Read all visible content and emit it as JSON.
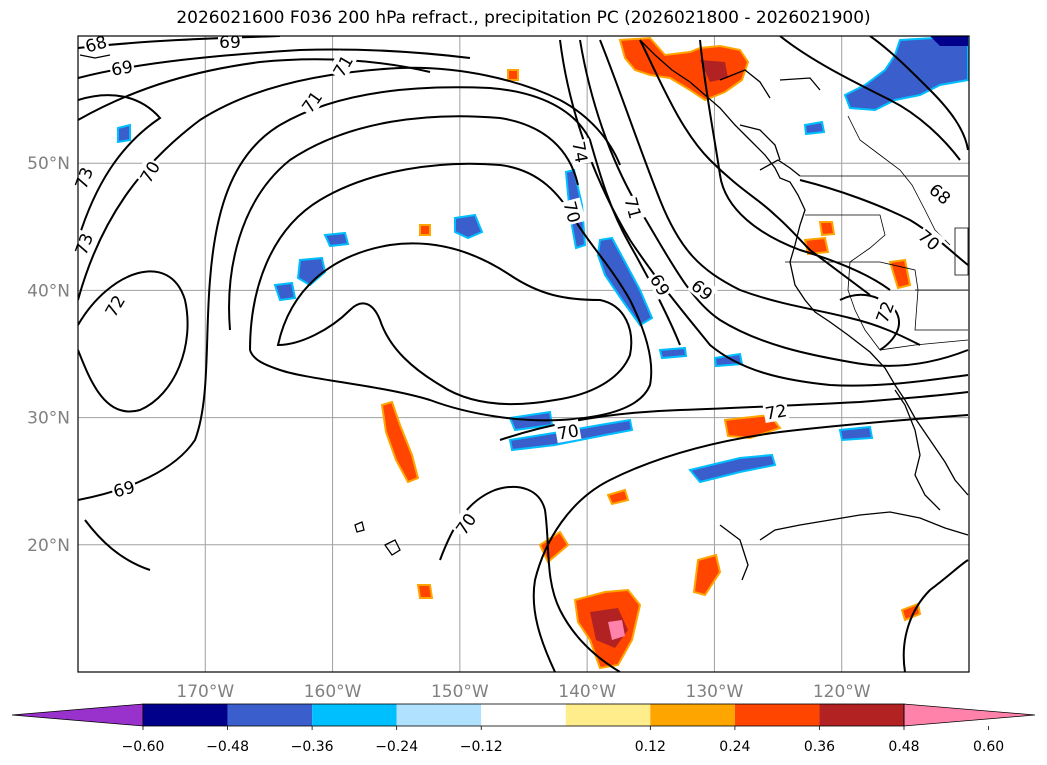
{
  "title": "2026021600 F036 200 hPa refract., precipitation PC (2026021800 - 2026021900)",
  "map": {
    "lon_ticks": [
      {
        "label": "170°W",
        "lon": -170
      },
      {
        "label": "160°W",
        "lon": -160
      },
      {
        "label": "150°W",
        "lon": -150
      },
      {
        "label": "140°W",
        "lon": -140
      },
      {
        "label": "130°W",
        "lon": -130
      },
      {
        "label": "120°W",
        "lon": -120
      }
    ],
    "lat_ticks": [
      {
        "label": "50°N",
        "lat": 50
      },
      {
        "label": "40°N",
        "lat": 40
      },
      {
        "label": "30°N",
        "lat": 30
      },
      {
        "label": "20°N",
        "lat": 20
      }
    ],
    "lon_range": [
      -180,
      -110
    ],
    "lat_range": [
      10,
      60
    ],
    "grid": true,
    "contour_labels": [
      "68",
      "69",
      "69",
      "71",
      "71",
      "70",
      "73",
      "74",
      "70",
      "71",
      "69",
      "69",
      "70",
      "68",
      "72",
      "72",
      "70",
      "70",
      "69",
      "72",
      "73"
    ],
    "colors": {
      "contour": "#000000",
      "grid": "#a0a0a0"
    }
  },
  "colorbar": {
    "labels": [
      "−0.60",
      "−0.48",
      "−0.36",
      "−0.24",
      "−0.12",
      "0.12",
      "0.24",
      "0.36",
      "0.48",
      "0.60"
    ],
    "colors": [
      "#9932cc",
      "#00008b",
      "#3a5fcd",
      "#00bfff",
      "#b0e2ff",
      "#ffffff",
      "#ffec8b",
      "#ffa500",
      "#ff4500",
      "#b22222",
      "#ff82ab"
    ]
  }
}
